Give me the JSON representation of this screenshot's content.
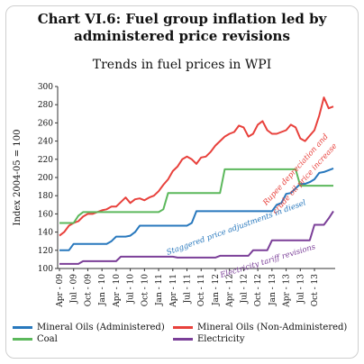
{
  "header": {
    "title_line1": "Chart VI.6: Fuel group inflation led by",
    "title_line2": "administered price revisions",
    "subtitle": "Trends in fuel prices in WPI"
  },
  "chart_data": {
    "type": "line",
    "title": "Chart VI.6: Fuel group inflation led by administered price revisions",
    "subtitle": "Trends in fuel prices in WPI",
    "ylabel": "Index 2004-05 = 100",
    "xlabel": "",
    "ylim": [
      100,
      300
    ],
    "yticks": [
      100,
      120,
      140,
      160,
      180,
      200,
      220,
      240,
      260,
      280,
      300
    ],
    "x_tick_labels": [
      "Apr - 09",
      "Jul - 09",
      "Oct - 09",
      "Jan - 10",
      "Apr - 10",
      "Jul - 10",
      "Oct - 10",
      "Jan - 11",
      "Apr - 11",
      "Jul - 11",
      "Oct - 11",
      "Jan - 12",
      "Apr - 12",
      "Jul - 12",
      "Oct - 12",
      "Jan - 13",
      "Apr - 13",
      "Jul - 13",
      "Oct - 13"
    ],
    "x_start": "Apr - 09",
    "grid": false,
    "legend_position": "bottom",
    "series": [
      {
        "name": "Mineral Oils (Administered)",
        "color": "#2878bd",
        "values": [
          120,
          120,
          120,
          127,
          127,
          127,
          127,
          127,
          127,
          127,
          127,
          130,
          135,
          135,
          135,
          136,
          140,
          147,
          147,
          147,
          147,
          147,
          147,
          147,
          147,
          147,
          147,
          147,
          150,
          163,
          163,
          163,
          163,
          163,
          163,
          163,
          163,
          163,
          163,
          163,
          163,
          163,
          163,
          163,
          163,
          163,
          170,
          172,
          182,
          183,
          188,
          193,
          193,
          195,
          198,
          205,
          206,
          208,
          210
        ]
      },
      {
        "name": "Mineral Oils (Non-Administered)",
        "color": "#e8413c",
        "values": [
          136,
          140,
          147,
          150,
          152,
          157,
          160,
          160,
          162,
          164,
          165,
          168,
          168,
          173,
          178,
          172,
          176,
          177,
          175,
          178,
          180,
          185,
          192,
          198,
          207,
          212,
          220,
          223,
          220,
          215,
          222,
          223,
          228,
          235,
          240,
          245,
          248,
          250,
          257,
          255,
          245,
          248,
          258,
          262,
          252,
          248,
          248,
          250,
          252,
          258,
          255,
          243,
          240,
          246,
          252,
          268,
          288,
          276,
          278
        ]
      },
      {
        "name": "Coal",
        "color": "#5cb85c",
        "values": [
          150,
          150,
          150,
          150,
          158,
          162,
          162,
          162,
          162,
          162,
          162,
          162,
          162,
          162,
          162,
          162,
          162,
          162,
          162,
          162,
          162,
          162,
          165,
          183,
          183,
          183,
          183,
          183,
          183,
          183,
          183,
          183,
          183,
          183,
          183,
          209,
          209,
          209,
          209,
          209,
          209,
          209,
          209,
          209,
          209,
          209,
          209,
          209,
          209,
          209,
          209,
          191,
          191,
          191,
          191,
          191,
          191,
          191,
          191
        ]
      },
      {
        "name": "Electricity",
        "color": "#7b3f98",
        "values": [
          105,
          105,
          105,
          105,
          105,
          108,
          108,
          108,
          108,
          108,
          108,
          108,
          108,
          113,
          113,
          113,
          113,
          113,
          113,
          113,
          113,
          113,
          113,
          113,
          113,
          112,
          112,
          112,
          112,
          112,
          112,
          112,
          112,
          112,
          114,
          114,
          114,
          114,
          114,
          114,
          114,
          120,
          120,
          120,
          120,
          131,
          131,
          131,
          131,
          131,
          131,
          131,
          131,
          131,
          148,
          148,
          148,
          155,
          163
        ]
      }
    ],
    "annotations": [
      {
        "text": "Rupee depreciation and",
        "series": "Mineral Oils (Non-Administered)"
      },
      {
        "text": "crude oil price increase",
        "series": "Mineral Oils (Non-Administered)"
      },
      {
        "text": "Staggered price adjustments in diesel",
        "series": "Mineral Oils (Administered)"
      },
      {
        "text": "Electricity tariff revisions",
        "series": "Electricity"
      }
    ]
  }
}
